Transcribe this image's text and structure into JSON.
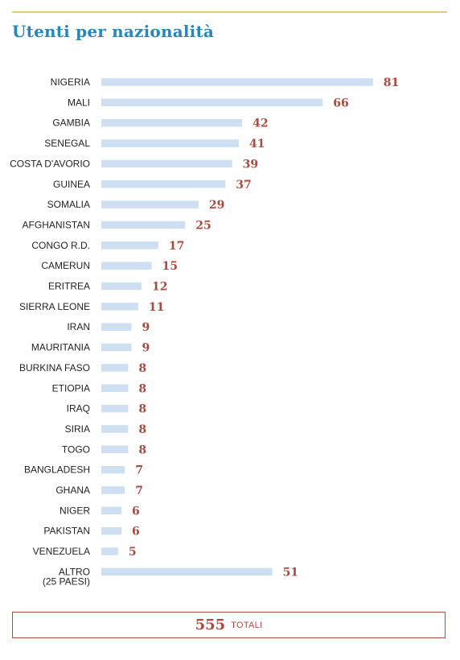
{
  "title": "Utenti per nazionalità",
  "colors": {
    "bar": "#cddff0",
    "value": "#a94a3e",
    "title": "#2a86b8",
    "rule": "#e9c87a"
  },
  "chart_data": {
    "type": "bar",
    "orientation": "horizontal",
    "categories": [
      [
        "NIGERIA"
      ],
      [
        "MALI"
      ],
      [
        "GAMBIA"
      ],
      [
        "SENEGAL"
      ],
      [
        "COSTA D'AVORIO"
      ],
      [
        "GUINEA"
      ],
      [
        "SOMALIA"
      ],
      [
        "AFGHANISTAN"
      ],
      [
        "CONGO R.D."
      ],
      [
        "CAMERUN"
      ],
      [
        "ERITREA"
      ],
      [
        "SIERRA LEONE"
      ],
      [
        "IRAN"
      ],
      [
        "MAURITANIA"
      ],
      [
        "BURKINA FASO"
      ],
      [
        "ETIOPIA"
      ],
      [
        "IRAQ"
      ],
      [
        "SIRIA"
      ],
      [
        "TOGO"
      ],
      [
        "BANGLADESH"
      ],
      [
        "GHANA"
      ],
      [
        "NIGER"
      ],
      [
        "PAKISTAN"
      ],
      [
        "VENEZUELA"
      ],
      [
        "ALTRO",
        "(25 PAESI)"
      ]
    ],
    "values": [
      81,
      66,
      42,
      41,
      39,
      37,
      29,
      25,
      17,
      15,
      12,
      11,
      9,
      9,
      8,
      8,
      8,
      8,
      8,
      7,
      7,
      6,
      6,
      5,
      51
    ]
  },
  "total": {
    "value": "555",
    "label": "TOTALI"
  }
}
